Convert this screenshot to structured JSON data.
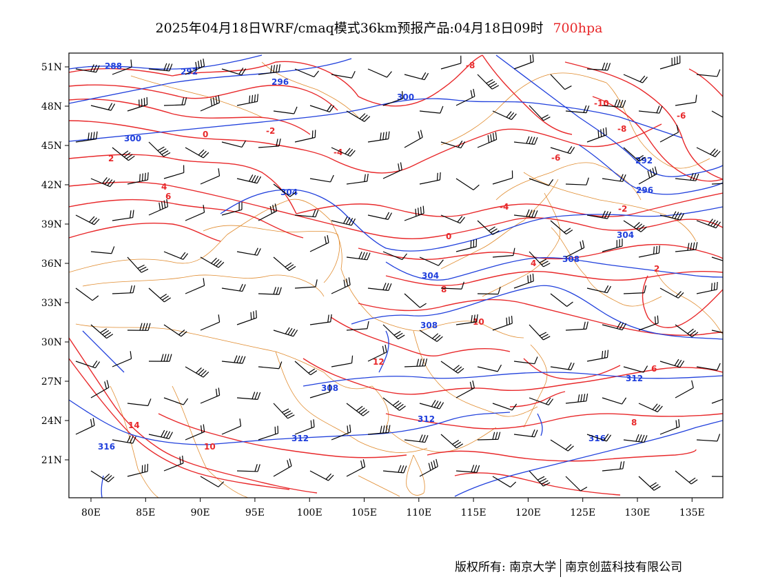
{
  "title": {
    "main": "2025年04月18日WRF/cmaq模式36km预报产品:04月18日09时",
    "level": "700hpa"
  },
  "axes": {
    "x_ticks": [
      "80E",
      "85E",
      "90E",
      "95E",
      "100E",
      "105E",
      "110E",
      "115E",
      "120E",
      "125E",
      "130E",
      "135E"
    ],
    "y_ticks": [
      "51N",
      "48N",
      "45N",
      "42N",
      "39N",
      "36N",
      "33N",
      "30N",
      "27N",
      "24N",
      "21N"
    ]
  },
  "contours": {
    "height_labels": [
      "288",
      "292",
      "296",
      "300",
      "292",
      "296",
      "300",
      "304",
      "304",
      "304",
      "308",
      "308",
      "308",
      "312",
      "312",
      "312",
      "316",
      "316"
    ],
    "temperature_labels": [
      "-8",
      "-10",
      "-8",
      "-6",
      "-4",
      "-2",
      "0",
      "2",
      "4",
      "6",
      "8",
      "10",
      "12",
      "14",
      "-2",
      "-4",
      "-6",
      "0",
      "2",
      "4",
      "6",
      "8",
      "10"
    ]
  },
  "colors": {
    "height_contour": "#1f3fdc",
    "temperature_contour": "#e8282a",
    "border": "#e08a2c",
    "wind_barb": "#000000",
    "level_text": "#e8282a"
  },
  "copyright": {
    "owner": "版权所有: 南京大学",
    "partner": "南京创蓝科技有限公司"
  }
}
